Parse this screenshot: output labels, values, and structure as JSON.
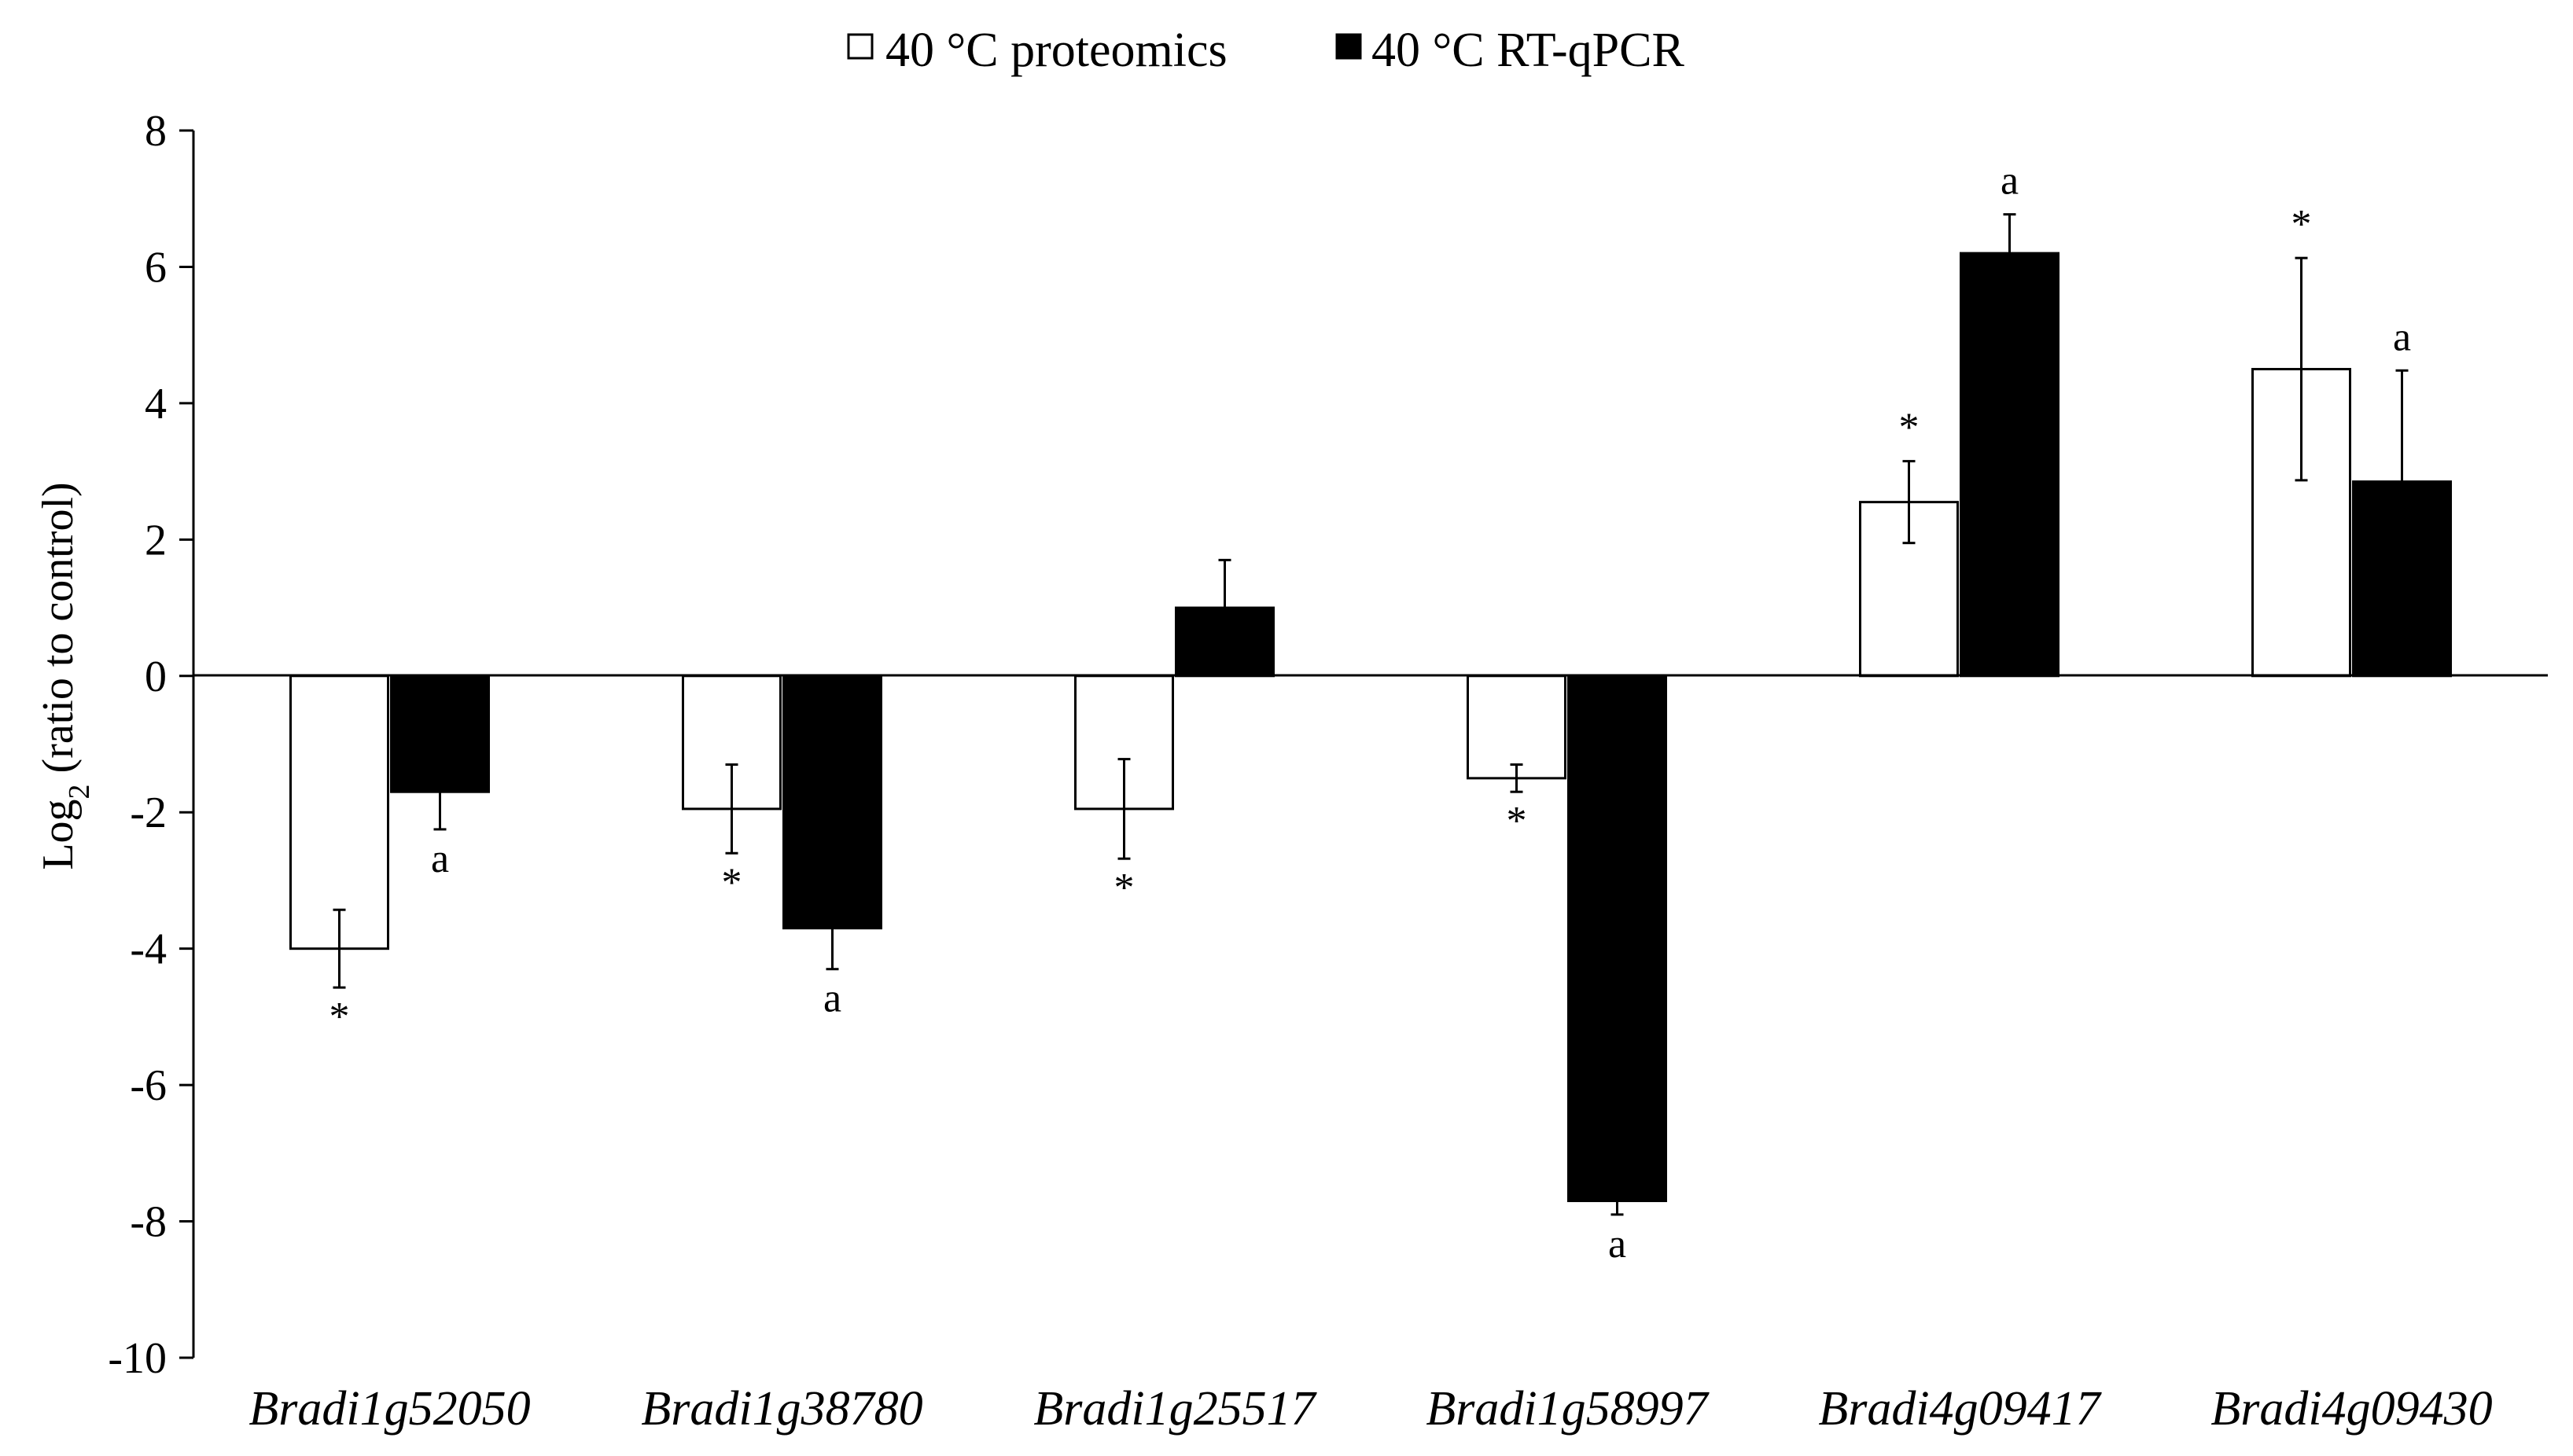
{
  "chart_data": {
    "type": "bar",
    "ylabel_main": "Log",
    "ylabel_sub": "2",
    "ylabel_rest": " (ratio to control)",
    "ylim": [
      -10,
      8
    ],
    "yticks": [
      "8",
      "6",
      "4",
      "2",
      "0",
      "-2",
      "-4",
      "-6",
      "-8",
      "-10"
    ],
    "ytick_values": [
      8,
      6,
      4,
      2,
      0,
      -2,
      -4,
      -6,
      -8,
      -10
    ],
    "categories": [
      "Bradi1g52050",
      "Bradi1g38780",
      "Bradi1g25517",
      "Bradi1g58997",
      "Bradi4g09417",
      "Bradi4g09430"
    ],
    "legend_position": "top-center",
    "series": [
      {
        "name": "40 °C proteomics",
        "fill": "#ffffff",
        "values": [
          -4.0,
          -1.95,
          -1.95,
          -1.5,
          2.55,
          4.5
        ],
        "errors": [
          0.57,
          0.65,
          0.73,
          0.2,
          0.6,
          1.63
        ],
        "annotations": [
          "*",
          "*",
          "*",
          "*",
          "*",
          "*"
        ]
      },
      {
        "name": "40 °C RT-qPCR",
        "fill": "#000000",
        "values": [
          -1.7,
          -3.7,
          1.0,
          -7.7,
          6.2,
          2.85
        ],
        "errors": [
          0.55,
          0.6,
          0.7,
          0.2,
          0.57,
          1.63
        ],
        "annotations": [
          "a",
          "a",
          "",
          "a",
          "a",
          "a"
        ]
      }
    ]
  }
}
